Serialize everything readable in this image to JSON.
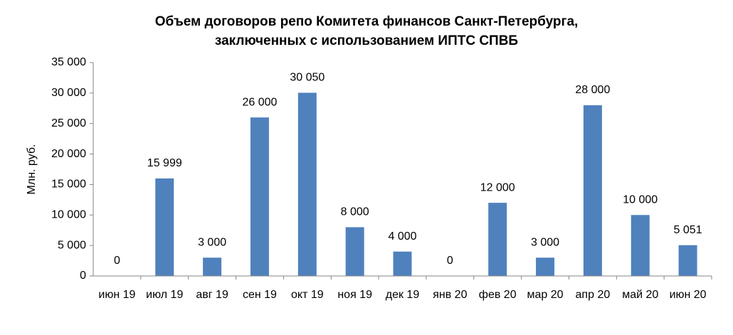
{
  "chart_data": {
    "type": "bar",
    "title": [
      "Объем договоров репо Комитета финансов Санкт-Петербурга,",
      "заключенных с использованием ИПТС СПВБ"
    ],
    "y_label": "Млн. руб.",
    "categories": [
      "июн 19",
      "июл 19",
      "авг 19",
      "сен 19",
      "окт 19",
      "ноя 19",
      "дек 19",
      "янв 20",
      "фев 20",
      "мар 20",
      "апр 20",
      "май 20",
      "июн 20"
    ],
    "values": [
      0,
      15999,
      3000,
      26000,
      30050,
      8000,
      4000,
      0,
      12000,
      3000,
      28000,
      10000,
      5051
    ],
    "value_labels": [
      "0",
      "15 999",
      "3 000",
      "26 000",
      "30 050",
      "8 000",
      "4 000",
      "0",
      "12 000",
      "3 000",
      "28 000",
      "10 000",
      "5 051"
    ],
    "color": "#4f81bd",
    "ylim": [
      0,
      35000
    ],
    "yticks": [
      0,
      {
        "value": 5000,
        "label": "5 000"
      },
      {
        "value": 10000,
        "label": "10 000"
      },
      {
        "value": 15000,
        "label": "15 000"
      },
      {
        "value": 20000,
        "label": "20 000"
      },
      {
        "value": 25000,
        "label": "25 000"
      },
      {
        "value": 30000,
        "label": "30 000"
      },
      {
        "value": 35000,
        "label": "35 000"
      }
    ],
    "grid": false
  }
}
